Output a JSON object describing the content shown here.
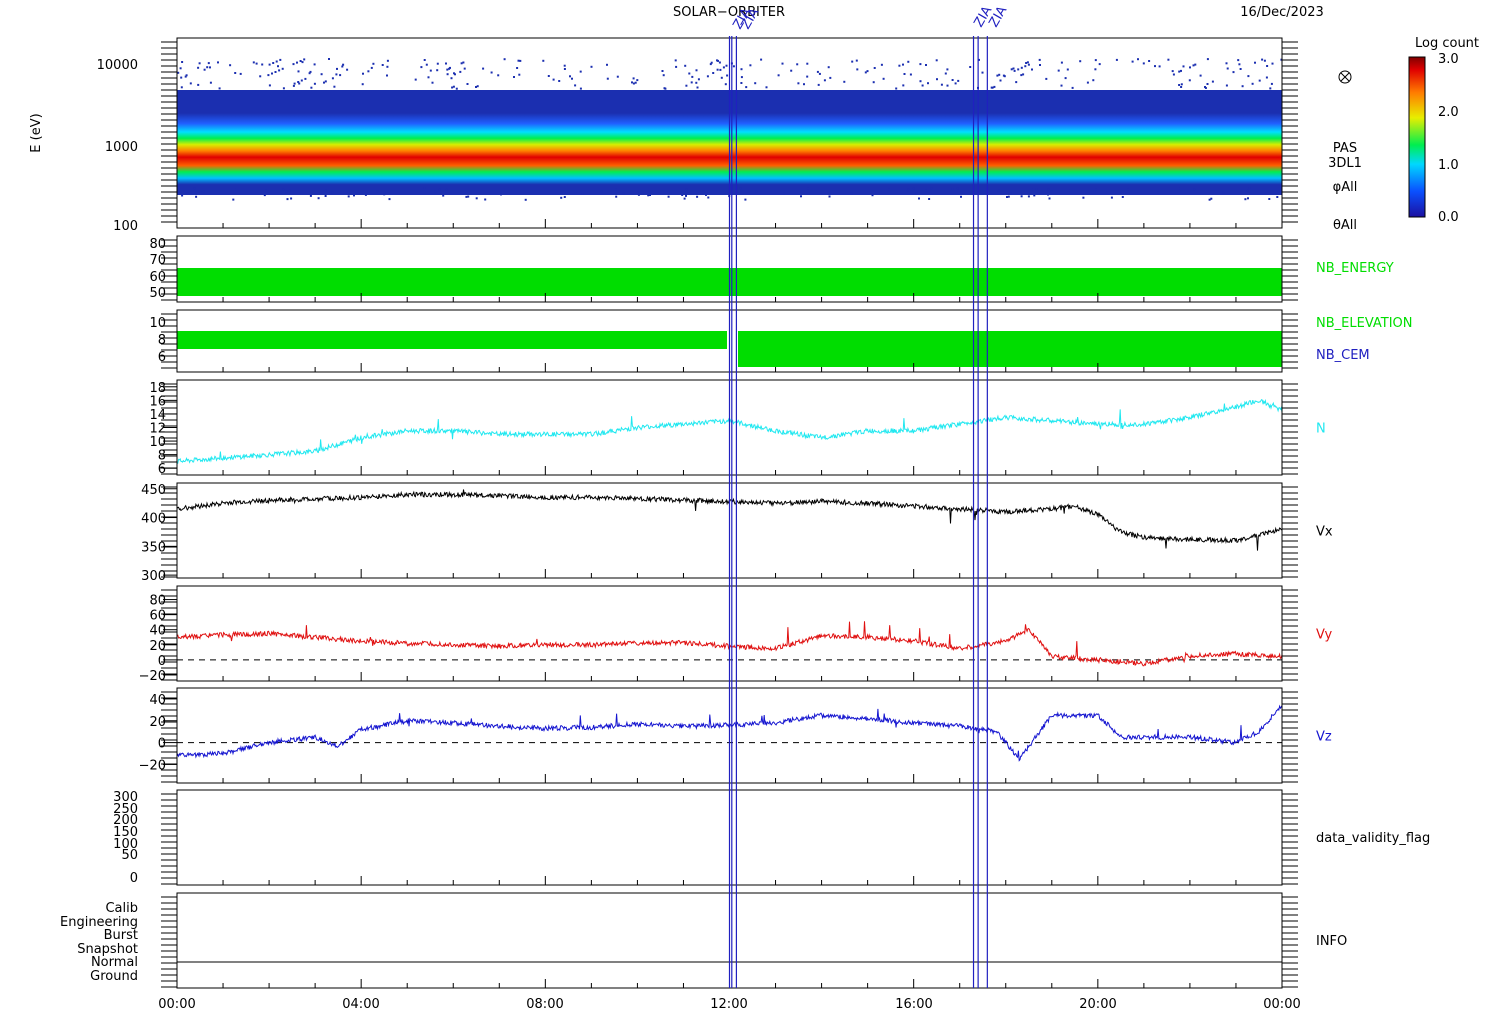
{
  "header": {
    "mission": "SOLAR−ORBITER",
    "date": "16/Dec/2023"
  },
  "colorbar": {
    "title": "Log count",
    "ticks": [
      "3.0",
      "2.0",
      "1.0",
      "0.0"
    ]
  },
  "x_axis": {
    "tick_labels": [
      "00:00",
      "04:00",
      "08:00",
      "12:00",
      "16:00",
      "20:00",
      "00:00"
    ]
  },
  "event_lines": {
    "labels": [
      "ZIA",
      "ZIA",
      "ZIA",
      "ZIA"
    ],
    "hours": [
      12.0,
      12.05,
      12.15,
      17.3,
      17.4,
      17.6
    ]
  },
  "chart_data": [
    {
      "type": "heatmap",
      "ylabel": "E (eV)",
      "y_tick_labels": [
        "10000",
        "1000",
        "100"
      ],
      "y_scale": "log",
      "ylim": [
        100,
        20000
      ],
      "xlim": [
        0,
        24
      ],
      "side_labels": [
        "PAS",
        "3DL1",
        "φAll",
        "θAll"
      ],
      "core_energy_eV": {
        "x": [
          0,
          4,
          8,
          12,
          16,
          18,
          20,
          21,
          24
        ],
        "y": [
          900,
          1000,
          1050,
          1000,
          1000,
          950,
          900,
          750,
          700
        ]
      },
      "colorscale": [
        "#1b2fb0",
        "#2060ff",
        "#00e0ff",
        "#00ee50",
        "#d8ee00",
        "#ff8000",
        "#e00000",
        "#900000"
      ],
      "zlim": [
        0.0,
        3.0
      ]
    },
    {
      "type": "bar",
      "series_name": "NB_ENERGY",
      "color": "#00dd00",
      "y_tick_labels": [
        "80",
        "70",
        "60",
        "50"
      ],
      "ylim": [
        42,
        84
      ],
      "band": [
        47,
        65
      ],
      "xlim": [
        0,
        24
      ]
    },
    {
      "type": "bar",
      "series_labels": [
        "NB_ELEVATION",
        "NB_CEM"
      ],
      "label_colors": [
        "#00dd00",
        "#2020c0"
      ],
      "color": "#00dd00",
      "y_tick_labels": [
        "10",
        "8",
        "6"
      ],
      "ylim": [
        4.5,
        11
      ],
      "bands": [
        {
          "x": [
            0,
            12.2
          ],
          "y": [
            7.2,
            9.0
          ]
        },
        {
          "x": [
            12.2,
            24
          ],
          "y": [
            5.0,
            9.0
          ]
        }
      ],
      "xlim": [
        0,
        24
      ]
    },
    {
      "type": "line",
      "series_name": "N",
      "color": "#20e8f0",
      "y_tick_labels": [
        "18",
        "16",
        "14",
        "12",
        "10",
        "8",
        "6"
      ],
      "ylim": [
        5,
        19
      ],
      "xlim": [
        0,
        24
      ],
      "x": [
        0,
        1,
        2,
        3,
        4,
        5,
        6,
        7,
        8,
        9,
        10,
        11,
        12,
        13,
        14,
        15,
        16,
        17,
        18,
        19,
        20,
        21,
        22,
        23,
        23.5,
        24
      ],
      "y": [
        7,
        7.5,
        8,
        8.5,
        10.5,
        11.5,
        11.5,
        11,
        11,
        11,
        12,
        12.5,
        13,
        11.5,
        10.5,
        11.5,
        11.5,
        12.5,
        13.5,
        13,
        12.5,
        12.5,
        13.5,
        15,
        16,
        14.5
      ]
    },
    {
      "type": "line",
      "series_name": "Vx",
      "color": "#000000",
      "y_tick_labels": [
        "450",
        "400",
        "350",
        "300"
      ],
      "ylim": [
        295,
        460
      ],
      "xlim": [
        0,
        24
      ],
      "x": [
        0,
        1,
        2,
        3,
        4,
        5,
        6,
        7,
        8,
        9,
        10,
        11,
        12,
        13,
        14,
        15,
        16,
        17,
        18,
        19,
        19.5,
        20,
        20.5,
        21,
        22,
        23,
        24
      ],
      "y": [
        415,
        425,
        430,
        432,
        435,
        440,
        440,
        438,
        435,
        435,
        433,
        430,
        428,
        425,
        428,
        425,
        420,
        415,
        410,
        415,
        420,
        405,
        375,
        365,
        362,
        360,
        380
      ]
    },
    {
      "type": "line",
      "series_name": "Vy",
      "color": "#e01010",
      "y_tick_labels": [
        "80",
        "60",
        "40",
        "20",
        "0",
        "−20"
      ],
      "ylim": [
        -28,
        98
      ],
      "zero_line": true,
      "xlim": [
        0,
        24
      ],
      "x": [
        0,
        1,
        2,
        3,
        4,
        5,
        6,
        7,
        8,
        9,
        10,
        11,
        12,
        13,
        14,
        15,
        16,
        17,
        18,
        18.5,
        19,
        20,
        21,
        22,
        23,
        24
      ],
      "y": [
        30,
        33,
        35,
        30,
        25,
        22,
        20,
        18,
        20,
        20,
        22,
        23,
        18,
        15,
        32,
        30,
        25,
        15,
        25,
        40,
        5,
        0,
        -5,
        5,
        8,
        5
      ]
    },
    {
      "type": "line",
      "series_name": "Vz",
      "color": "#1515d0",
      "y_tick_labels": [
        "40",
        "20",
        "0",
        "−20"
      ],
      "ylim": [
        -37,
        50
      ],
      "zero_line": true,
      "xlim": [
        0,
        24
      ],
      "x": [
        0,
        1,
        2,
        3,
        3.5,
        4,
        5,
        6,
        7,
        8,
        9,
        10,
        11,
        12,
        13,
        14,
        15,
        16,
        17,
        17.8,
        18.3,
        19,
        20,
        20.5,
        21,
        22,
        23,
        23.5,
        24
      ],
      "y": [
        -12,
        -10,
        0,
        5,
        -3,
        12,
        20,
        18,
        15,
        13,
        14,
        17,
        15,
        16,
        18,
        25,
        22,
        18,
        15,
        10,
        -15,
        25,
        25,
        5,
        5,
        5,
        0,
        10,
        35
      ]
    },
    {
      "type": "line",
      "series_name": "data_validity_flag",
      "y_tick_labels": [
        "300",
        "250",
        "200",
        "150",
        "100",
        "50",
        "0"
      ],
      "ylim": [
        -30,
        310
      ],
      "xlim": [
        0,
        24
      ]
    },
    {
      "type": "table",
      "series_name": "INFO",
      "y_tick_labels": [
        "Calib",
        "Engineering",
        "Burst",
        "Snapshot",
        "Normal",
        "Ground"
      ],
      "active_mode": "Normal",
      "xlim": [
        0,
        24
      ]
    }
  ]
}
